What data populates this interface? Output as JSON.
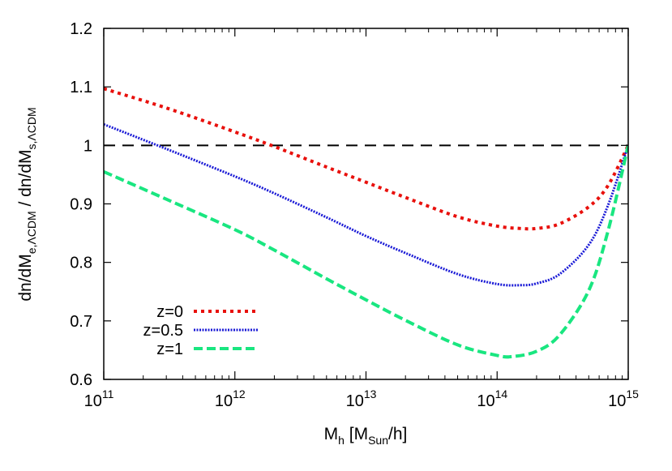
{
  "chart_data": {
    "type": "line",
    "xscale": "log",
    "xlim": [
      100000000000.0,
      1000000000000000.0
    ],
    "ylim": [
      0.6,
      1.2
    ],
    "x_ticks": [
      {
        "value": 100000000000.0,
        "base": "10",
        "exp": "11"
      },
      {
        "value": 1000000000000.0,
        "base": "10",
        "exp": "12"
      },
      {
        "value": 10000000000000.0,
        "base": "10",
        "exp": "13"
      },
      {
        "value": 100000000000000.0,
        "base": "10",
        "exp": "14"
      },
      {
        "value": 1000000000000000.0,
        "base": "10",
        "exp": "15"
      }
    ],
    "y_ticks": [
      {
        "value": 0.6,
        "label": "0.6"
      },
      {
        "value": 0.7,
        "label": "0.7"
      },
      {
        "value": 0.8,
        "label": "0.8"
      },
      {
        "value": 0.9,
        "label": "0.9"
      },
      {
        "value": 1.0,
        "label": "1"
      },
      {
        "value": 1.1,
        "label": "1.1"
      },
      {
        "value": 1.2,
        "label": "1.2"
      }
    ],
    "xlabel": {
      "main": "M",
      "sub1": "h",
      "mid": " [M",
      "sub2": "Sun",
      "end": "/h]"
    },
    "ylabel": {
      "a": "dn/dM",
      "a_sub": "e,ΛCDM",
      "b": " / dn/dM",
      "b_sub": "s,ΛCDM"
    },
    "reference_line": {
      "y": 1.0,
      "color": "#000000"
    },
    "legend_position": "bottom-left",
    "grid": false,
    "series": [
      {
        "name": "z=0",
        "color": "#e8100c",
        "style": "dotted-heavy",
        "x": [
          100000000000.0,
          300000000000.0,
          1000000000000.0,
          2000000000000.0,
          5000000000000.0,
          10000000000000.0,
          20000000000000.0,
          50000000000000.0,
          100000000000000.0,
          150000000000000.0,
          200000000000000.0,
          300000000000000.0,
          500000000000000.0,
          700000000000000.0,
          1000000000000000.0
        ],
        "y": [
          1.097,
          1.064,
          1.023,
          0.998,
          0.963,
          0.937,
          0.911,
          0.878,
          0.862,
          0.858,
          0.858,
          0.866,
          0.895,
          0.931,
          1.0
        ]
      },
      {
        "name": "z=0.5",
        "color": "#1a1ad6",
        "style": "dotted-fine",
        "x": [
          100000000000.0,
          300000000000.0,
          1000000000000.0,
          2000000000000.0,
          5000000000000.0,
          10000000000000.0,
          20000000000000.0,
          50000000000000.0,
          100000000000000.0,
          150000000000000.0,
          200000000000000.0,
          300000000000000.0,
          500000000000000.0,
          700000000000000.0,
          1000000000000000.0
        ],
        "y": [
          1.036,
          0.994,
          0.947,
          0.918,
          0.877,
          0.845,
          0.816,
          0.78,
          0.763,
          0.761,
          0.764,
          0.78,
          0.83,
          0.897,
          1.0
        ]
      },
      {
        "name": "z=1",
        "color": "#19e680",
        "style": "dashed",
        "x": [
          100000000000.0,
          300000000000.0,
          1000000000000.0,
          2000000000000.0,
          5000000000000.0,
          10000000000000.0,
          20000000000000.0,
          50000000000000.0,
          100000000000000.0,
          130000000000000.0,
          200000000000000.0,
          300000000000000.0,
          500000000000000.0,
          700000000000000.0,
          1000000000000000.0
        ],
        "y": [
          0.955,
          0.908,
          0.856,
          0.821,
          0.772,
          0.736,
          0.701,
          0.659,
          0.641,
          0.639,
          0.648,
          0.676,
          0.752,
          0.853,
          1.0
        ]
      }
    ]
  }
}
